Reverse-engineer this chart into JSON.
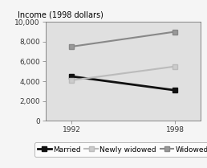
{
  "title": "Income (1998 dollars)",
  "x_values": [
    1992,
    1998
  ],
  "series_order": [
    "Married",
    "Newly widowed",
    "Widowed"
  ],
  "series": {
    "Married": {
      "values": [
        4500,
        3100
      ],
      "color": "#111111",
      "marker": "s",
      "markersize": 5,
      "lw": 2.0,
      "markerfacecolor": "#111111"
    },
    "Newly widowed": {
      "values": [
        4100,
        5500
      ],
      "color": "#bbbbbb",
      "marker": "s",
      "markersize": 5,
      "lw": 1.5,
      "markerfacecolor": "#cccccc"
    },
    "Widowed": {
      "values": [
        7500,
        9000
      ],
      "color": "#888888",
      "marker": "s",
      "markersize": 5,
      "lw": 1.5,
      "markerfacecolor": "#999999"
    }
  },
  "ylim": [
    0,
    10000
  ],
  "yticks": [
    0,
    2000,
    4000,
    6000,
    8000,
    10000
  ],
  "ytick_labels": [
    "0",
    "2,000",
    "4,000",
    "6,000",
    "8,000",
    "10,000"
  ],
  "xticks": [
    1992,
    1998
  ],
  "xlim": [
    1990.5,
    1999.5
  ],
  "plot_bg_color": "#e0e0e0",
  "fig_bg_color": "#f5f5f5",
  "title_fontsize": 7.0,
  "tick_fontsize": 6.5,
  "legend_fontsize": 6.5
}
